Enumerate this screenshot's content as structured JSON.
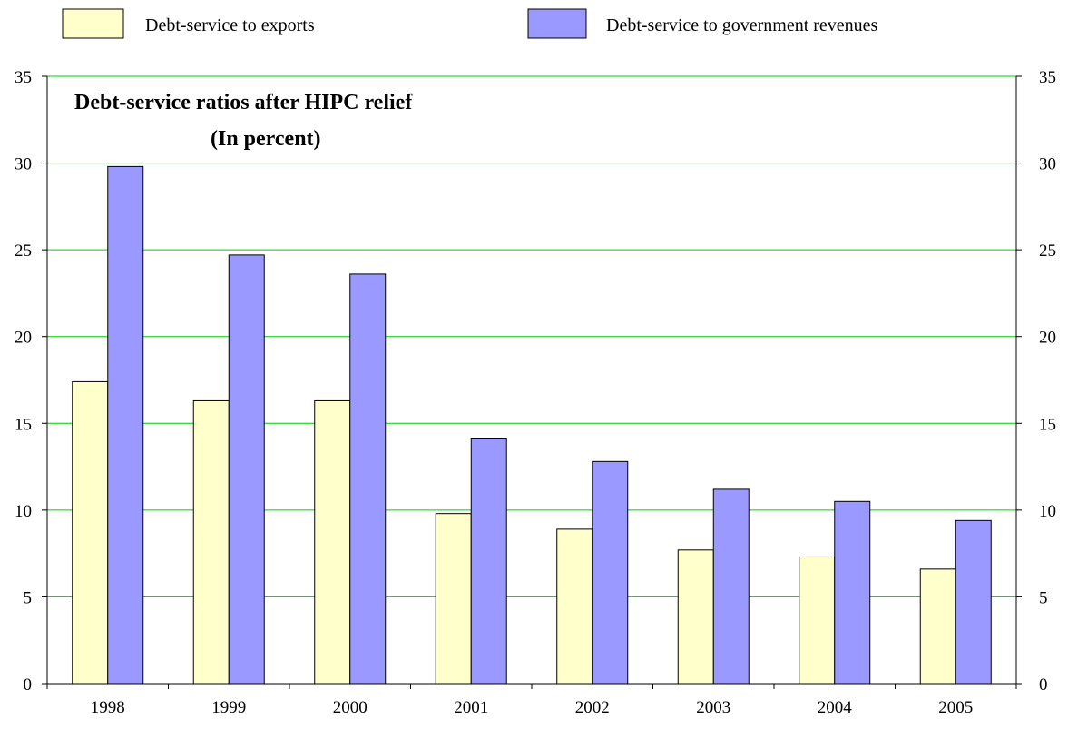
{
  "colors": {
    "exports": "#ffffcc",
    "revenues": "#9999ff",
    "grid": "#00cc00",
    "axis": "#000000"
  },
  "chart_data": {
    "type": "bar",
    "title": "Debt-service ratios after HIPC relief",
    "subtitle": "(In percent)",
    "categories": [
      "1998",
      "1999",
      "2000",
      "2001",
      "2002",
      "2003",
      "2004",
      "2005"
    ],
    "series": [
      {
        "name": "Debt-service to exports",
        "values": [
          17.4,
          16.3,
          16.3,
          9.8,
          8.9,
          7.7,
          7.3,
          6.6
        ]
      },
      {
        "name": "Debt-service to government revenues",
        "values": [
          29.8,
          24.7,
          23.6,
          14.1,
          12.8,
          11.2,
          10.5,
          9.4
        ]
      }
    ],
    "ylim": [
      0,
      35
    ],
    "yticks": [
      "0",
      "5",
      "10",
      "15",
      "20",
      "25",
      "30",
      "35"
    ],
    "xlabel": "",
    "ylabel": "",
    "grid": true,
    "legend_position": "top",
    "secondary_y_axis": true
  }
}
